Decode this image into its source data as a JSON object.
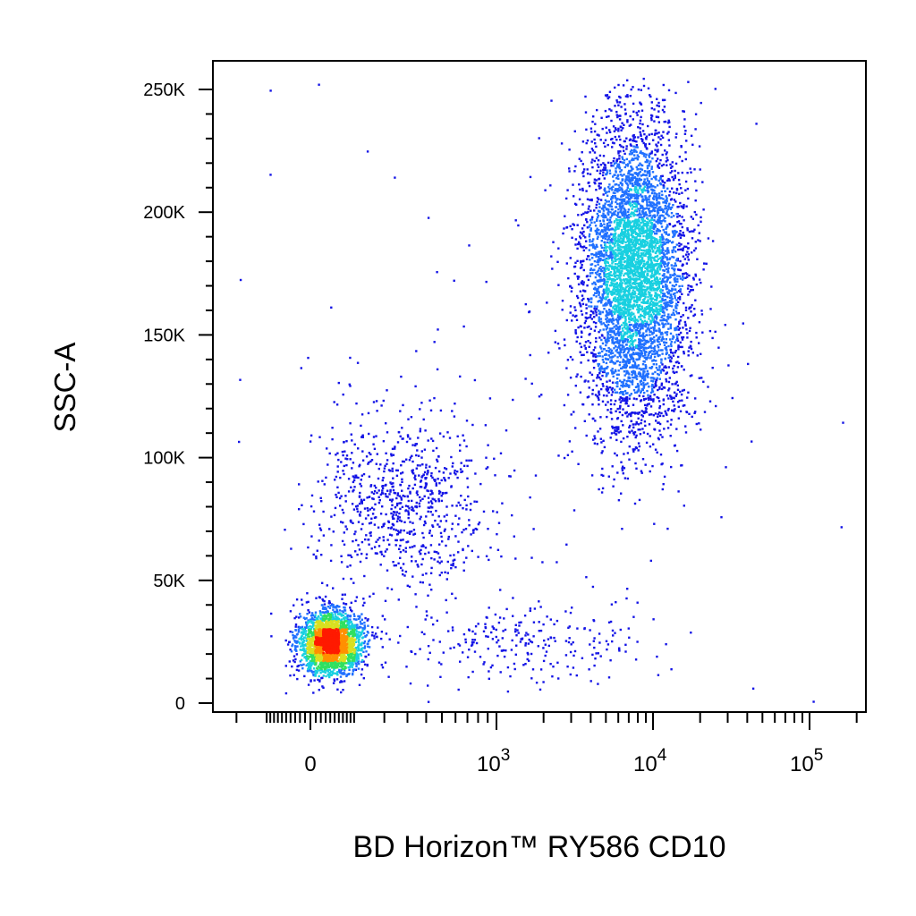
{
  "chart_data": {
    "type": "scatter",
    "style": "density-colored flow cytometry dot plot",
    "xlabel": "BD Horizon™ RY586 CD10",
    "ylabel": "SSC-A",
    "x_scale": "biexponential (linear near 0, log above)",
    "x_ticks": [
      {
        "value": 0,
        "label": "0"
      },
      {
        "value": 1000,
        "label": "10",
        "exp": "3"
      },
      {
        "value": 10000,
        "label": "10",
        "exp": "4"
      },
      {
        "value": 100000,
        "label": "10",
        "exp": "5"
      }
    ],
    "y_ticks": [
      {
        "value": 0,
        "label": "0"
      },
      {
        "value": 50000,
        "label": "50K"
      },
      {
        "value": 100000,
        "label": "100K"
      },
      {
        "value": 150000,
        "label": "150K"
      },
      {
        "value": 200000,
        "label": "200K"
      },
      {
        "value": 250000,
        "label": "250K"
      }
    ],
    "ylim": [
      -3000,
      262000
    ],
    "grid": false,
    "legend": "none",
    "density_colors": [
      "#1414e6",
      "#2070ff",
      "#18d0e0",
      "#30e060",
      "#d8e020",
      "#ff9000",
      "#ff1a00"
    ],
    "populations": [
      {
        "name": "",
        "x_center": 40,
        "x_spread_log": 0.35,
        "y_center": 25000,
        "y_spread": 6500,
        "count": 2600
      },
      {
        "name": "",
        "x_center": 260,
        "x_spread_log": 0.35,
        "y_center": 82000,
        "y_spread": 18000,
        "count": 800
      },
      {
        "name": "",
        "x_center": 7500,
        "x_spread_log": 0.17,
        "y_center": 175000,
        "y_spread": 32000,
        "count": 5200
      },
      {
        "name": "",
        "x_center": 1500,
        "x_spread_log": 0.4,
        "y_center": 25000,
        "y_spread": 8000,
        "count": 250
      },
      {
        "name": "",
        "x_center": 1200,
        "x_spread_log": 0.9,
        "y_center": 90000,
        "y_spread": 70000,
        "count": 140
      }
    ]
  }
}
